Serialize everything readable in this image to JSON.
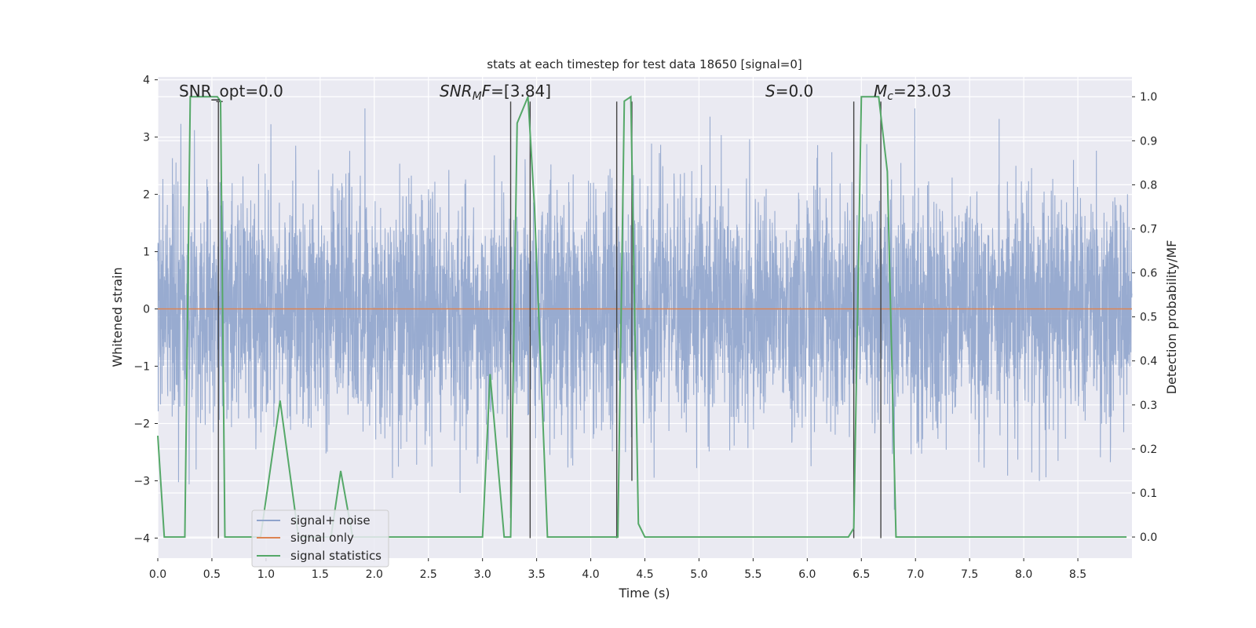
{
  "chart_data": {
    "type": "line",
    "title": "stats at each timestep for test data 18650 [signal=0]",
    "xlabel": "Time (s)",
    "ylabel": "Whitened strain",
    "y2label": "Detection probability/MF",
    "xlim": [
      0.0,
      9.0
    ],
    "ylim": [
      -4.35,
      4.05
    ],
    "y2lim": [
      -0.048,
      1.045
    ],
    "x_ticks": [
      0.0,
      0.5,
      1.0,
      1.5,
      2.0,
      2.5,
      3.0,
      3.5,
      4.0,
      4.5,
      5.0,
      5.5,
      6.0,
      6.5,
      7.0,
      7.5,
      8.0,
      8.5
    ],
    "x_tick_labels": [
      "0.0",
      "0.5",
      "1.0",
      "1.5",
      "2.0",
      "2.5",
      "3.0",
      "3.5",
      "4.0",
      "4.5",
      "5.0",
      "5.5",
      "6.0",
      "6.5",
      "7.0",
      "7.5",
      "8.0",
      "8.5"
    ],
    "y_ticks": [
      -4,
      -3,
      -2,
      -1,
      0,
      1,
      2,
      3,
      4
    ],
    "y_tick_labels": [
      "−4",
      "−3",
      "−2",
      "−1",
      "0",
      "1",
      "2",
      "3",
      "4"
    ],
    "y2_ticks": [
      0.0,
      0.1,
      0.2,
      0.3,
      0.4,
      0.5,
      0.6,
      0.7,
      0.8,
      0.9,
      1.0
    ],
    "y2_tick_labels": [
      "0.0",
      "0.1",
      "0.2",
      "0.3",
      "0.4",
      "0.5",
      "0.6",
      "0.7",
      "0.8",
      "0.9",
      "1.0"
    ],
    "grid": true,
    "legend_position": "lower-left",
    "annotations": {
      "snr_opt": "SNR_opt=0.0",
      "snr_mf_italic": "SNR",
      "snr_mf_sub": "M",
      "snr_mf_italic2": "F",
      "snr_mf_value": "=[3.84]",
      "s_italic": "S",
      "s_value": "=0.0",
      "mc_italic": "M",
      "mc_sub": "c",
      "mc_value": "=23.03"
    },
    "series": [
      {
        "name": "signal+ noise",
        "color": "#8fa4cc",
        "axis": "left",
        "kind": "noise",
        "approx_std": 1.0,
        "approx_range": [
          -3.65,
          3.5
        ]
      },
      {
        "name": "signal only",
        "color": "#dd8452",
        "axis": "left",
        "x": [
          0.0,
          9.0
        ],
        "y": [
          0.0,
          0.0
        ]
      },
      {
        "name": "signal statistics",
        "color": "#55a868",
        "axis": "right",
        "x": [
          0.0,
          0.06,
          0.25,
          0.3,
          0.55,
          0.58,
          0.62,
          0.95,
          1.13,
          1.3,
          1.5,
          1.6,
          1.69,
          1.8,
          2.5,
          3.0,
          3.07,
          3.2,
          3.26,
          3.32,
          3.42,
          3.48,
          3.6,
          4.0,
          4.25,
          4.31,
          4.37,
          4.44,
          4.5,
          5.5,
          6.0,
          6.38,
          6.43,
          6.5,
          6.66,
          6.74,
          6.82,
          7.0,
          8.0,
          8.95
        ],
        "y": [
          0.23,
          0.0,
          0.0,
          1.0,
          1.0,
          0.99,
          0.0,
          0.0,
          0.31,
          0.0,
          0.0,
          0.0,
          0.15,
          0.0,
          0.0,
          0.0,
          0.37,
          0.0,
          0.0,
          0.94,
          1.0,
          0.75,
          0.0,
          0.0,
          0.0,
          0.99,
          1.0,
          0.03,
          0.0,
          0.0,
          0.0,
          0.0,
          0.02,
          1.0,
          1.0,
          0.83,
          0.0,
          0.0,
          0.0,
          0.0
        ]
      }
    ],
    "vertical_markers": {
      "color": "#444444",
      "lines": [
        {
          "x": 0.24,
          "y_top": 3.62,
          "y_bottom": 3.62
        },
        {
          "x": 0.56,
          "y_top": 3.62,
          "y_bottom": -4.0
        },
        {
          "x": 3.26,
          "y_top": 3.62,
          "y_bottom": -3.65
        },
        {
          "x": 3.44,
          "y_top": 3.62,
          "y_bottom": -4.0
        },
        {
          "x": 4.24,
          "y_top": 3.62,
          "y_bottom": -4.0
        },
        {
          "x": 4.38,
          "y_top": 3.62,
          "y_bottom": -3.0
        },
        {
          "x": 6.43,
          "y_top": 3.62,
          "y_bottom": -4.0
        },
        {
          "x": 6.68,
          "y_top": 3.62,
          "y_bottom": -4.0
        }
      ]
    }
  }
}
